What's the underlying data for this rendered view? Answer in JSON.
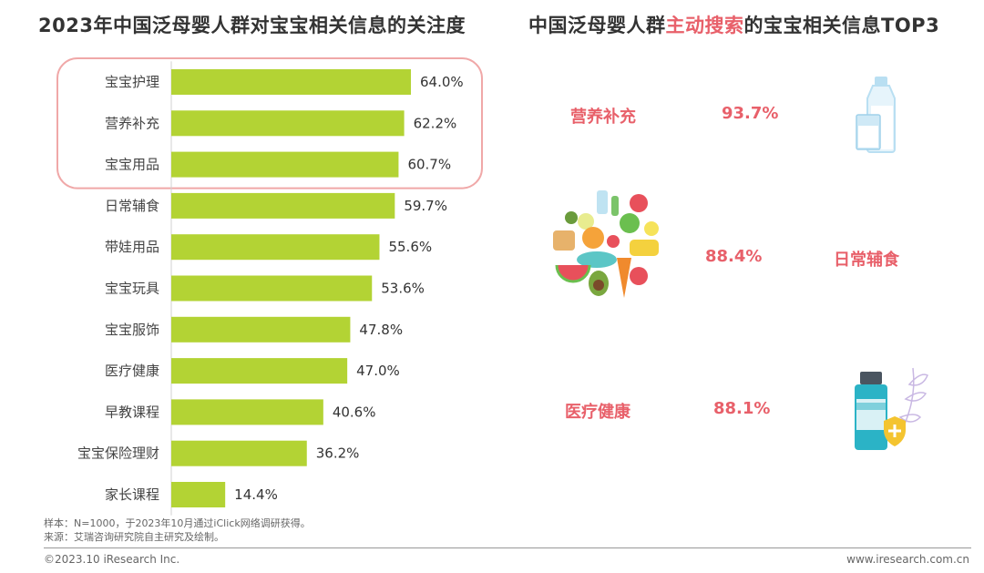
{
  "titles": {
    "left": "2023年中国泛母婴人群对宝宝相关信息的关注度",
    "right_prefix": "中国泛母婴人群",
    "right_highlight": "主动搜索",
    "right_suffix": "的宝宝相关信息TOP3"
  },
  "chart_data": {
    "type": "bar",
    "orientation": "horizontal",
    "title": "2023年中国泛母婴人群对宝宝相关信息的关注度",
    "categories": [
      "宝宝护理",
      "营养补充",
      "宝宝用品",
      "日常辅食",
      "带娃用品",
      "宝宝玩具",
      "宝宝服饰",
      "医疗健康",
      "早教课程",
      "宝宝保险理财",
      "家长课程"
    ],
    "values": [
      64.0,
      62.2,
      60.7,
      59.7,
      55.6,
      53.6,
      47.8,
      47.0,
      40.6,
      36.2,
      14.4
    ],
    "value_labels": [
      "64.0%",
      "62.2%",
      "60.7%",
      "59.7%",
      "55.6%",
      "53.6%",
      "47.8%",
      "47.0%",
      "40.6%",
      "36.2%",
      "14.4%"
    ],
    "xlim": [
      0,
      100
    ],
    "bar_color": "#b3d334",
    "highlight_box_color": "#f0a8a8",
    "highlighted_categories": [
      "宝宝护理",
      "营养补充",
      "宝宝用品"
    ]
  },
  "top3": [
    {
      "name": "营养补充",
      "percent": "93.7%",
      "icon": "milk-bottle-glass-icon"
    },
    {
      "name": "日常辅食",
      "percent": "88.4%",
      "icon": "food-assortment-icon"
    },
    {
      "name": "医疗健康",
      "percent": "88.1%",
      "icon": "medicine-bottle-shield-icon"
    }
  ],
  "notes": {
    "sample": "样本：N=1000，于2023年10月通过iClick网络调研获得。",
    "source": "来源：艾瑞咨询研究院自主研究及绘制。"
  },
  "footer": {
    "copyright": "©2023.10 iResearch Inc.",
    "website": "www.iresearch.com.cn"
  },
  "colors": {
    "accent": "#e8606a",
    "bar": "#b3d334"
  }
}
